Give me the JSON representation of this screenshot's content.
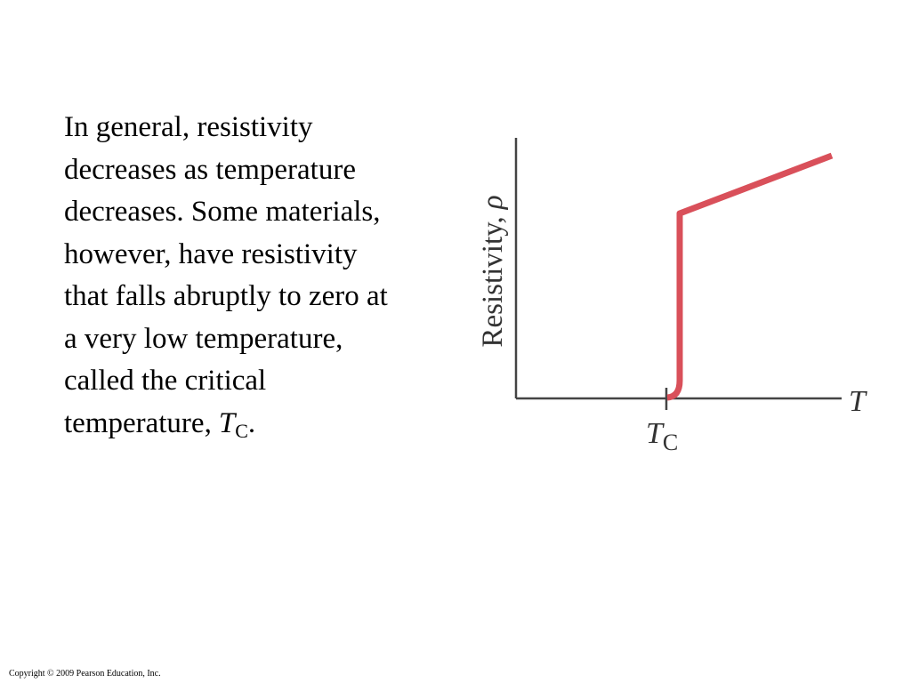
{
  "slide": {
    "text_lines": [
      "In general, resistivity",
      "decreases as temperature",
      "decreases. Some materials,",
      "however, have resistivity",
      "that falls abruptly to zero at",
      "a very low temperature,",
      "called the critical"
    ],
    "last_line": {
      "text": "temperature,",
      "symbol": "T",
      "subscript": "C",
      "end": "."
    }
  },
  "figure": {
    "y_axis_label": "Resistivity,",
    "y_axis_symbol": "ρ",
    "x_axis_symbol": "T",
    "tick_symbol": "T",
    "tick_subscript": "C"
  },
  "copyright": "Copyright © 2009 Pearson Education, Inc."
}
